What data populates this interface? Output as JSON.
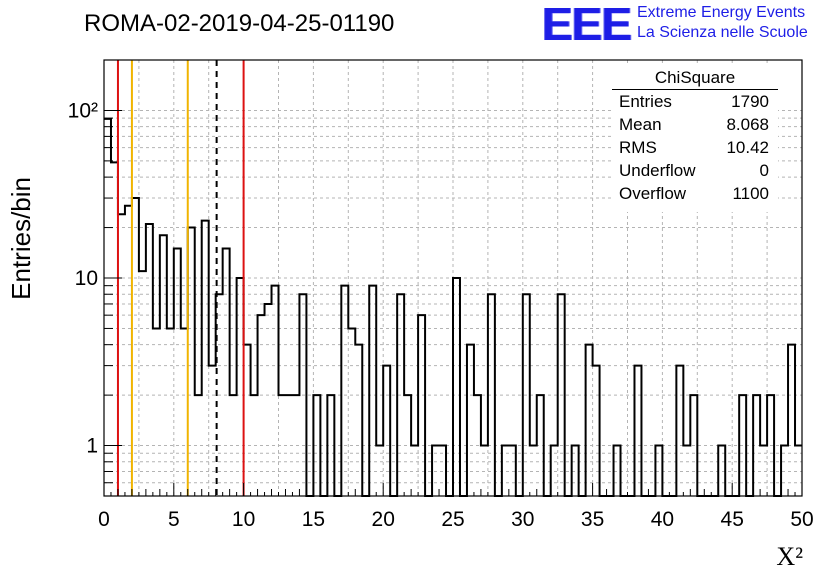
{
  "header": {
    "title": "ROMA-02-2019-04-25-01190"
  },
  "logo": {
    "mark": "EEE",
    "line1": "Extreme Energy Events",
    "line2": "La Scienza nelle Scuole"
  },
  "stats": {
    "title": "ChiSquare",
    "rows": [
      {
        "label": "Entries",
        "value": "1790"
      },
      {
        "label": "Mean",
        "value": "8.068"
      },
      {
        "label": "RMS",
        "value": "10.42"
      },
      {
        "label": "Underflow",
        "value": "0"
      },
      {
        "label": "Overflow",
        "value": "1100"
      }
    ]
  },
  "chart_data": {
    "type": "bar",
    "xlabel": "X²",
    "ylabel": "Entries/bin",
    "xlim": [
      0,
      50
    ],
    "ylim": [
      0.5,
      200
    ],
    "yscale": "log",
    "grid": true,
    "bin_width": 0.5,
    "x_ticks": [
      "0",
      "5",
      "10",
      "15",
      "20",
      "25",
      "30",
      "35",
      "40",
      "45",
      "50"
    ],
    "y_ticks": [
      {
        "value": 1,
        "label": "1"
      },
      {
        "value": 10,
        "label": "10"
      },
      {
        "value": 100,
        "label": "10²"
      }
    ],
    "values": [
      89,
      49,
      24,
      27,
      30,
      11,
      21,
      5,
      18,
      5,
      15,
      5,
      20,
      2,
      22,
      3,
      8,
      15,
      2,
      10,
      4,
      2,
      6,
      7,
      9,
      2,
      2,
      2,
      8,
      0,
      2,
      0,
      2,
      0,
      9,
      5,
      4,
      0,
      9,
      1,
      3,
      0,
      8,
      2,
      1,
      6,
      0,
      1,
      1,
      0,
      10,
      0,
      4,
      2,
      1,
      8,
      0,
      1,
      1,
      0,
      8,
      1,
      2,
      0,
      1,
      8,
      0,
      1,
      0,
      4,
      3,
      0,
      0,
      1,
      0,
      0,
      3,
      0,
      0,
      1,
      0,
      0,
      3,
      1,
      2,
      0,
      0,
      0,
      1,
      0,
      0,
      2,
      0,
      2,
      1,
      2,
      0,
      1,
      4,
      1
    ],
    "vlines": [
      {
        "x": 1,
        "color": "#dd1111",
        "style": "solid"
      },
      {
        "x": 2,
        "color": "#f0b400",
        "style": "solid"
      },
      {
        "x": 6,
        "color": "#f0b400",
        "style": "solid"
      },
      {
        "x": 8.068,
        "color": "#000000",
        "style": "dashed"
      },
      {
        "x": 10,
        "color": "#dd1111",
        "style": "solid"
      }
    ]
  }
}
